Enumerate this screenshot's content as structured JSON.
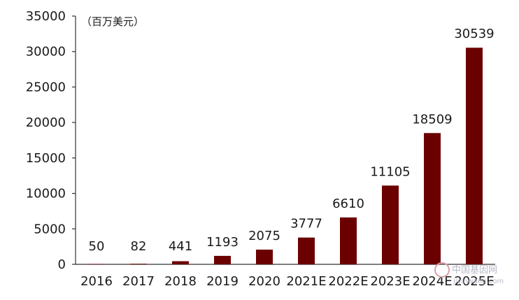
{
  "chart_data": {
    "type": "bar",
    "unit_label": "（百万美元）",
    "categories": [
      "2016",
      "2017",
      "2018",
      "2019",
      "2020",
      "2021E",
      "2022E",
      "2023E",
      "2024E",
      "2025E"
    ],
    "values": [
      50,
      82,
      441,
      1193,
      2075,
      3777,
      6610,
      11105,
      18509,
      30539
    ],
    "data_labels": [
      "50",
      "82",
      "441",
      "1193",
      "2075",
      "3777",
      "6610",
      "11105",
      "18509",
      "30539"
    ],
    "y_ticks": [
      0,
      5000,
      10000,
      15000,
      20000,
      25000,
      30000,
      35000
    ],
    "ylim": [
      0,
      35000
    ],
    "grid": false,
    "legend": "none",
    "bar_color": "#6b0000"
  },
  "watermark": {
    "text": "中国基因网",
    "subtext": "jiyinwang.com"
  }
}
